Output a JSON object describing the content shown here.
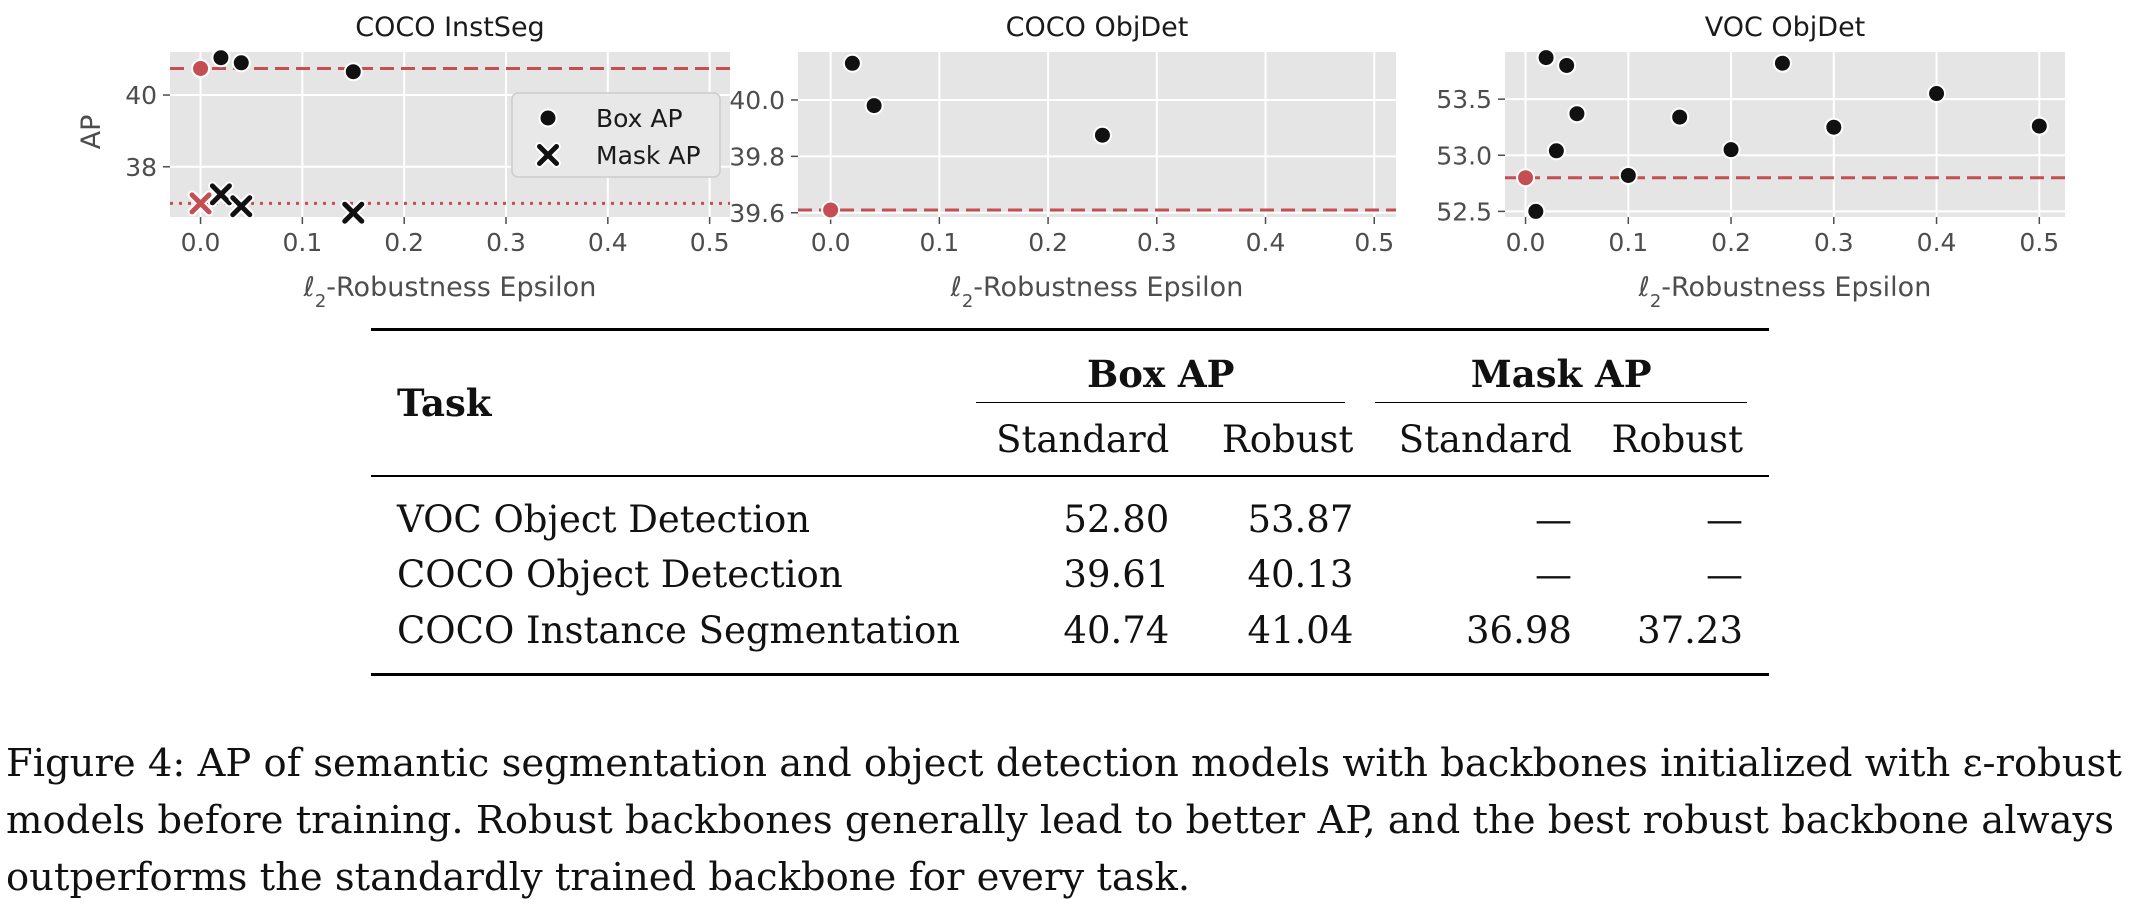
{
  "chart_data": [
    {
      "type": "scatter",
      "title": "COCO InstSeg",
      "xlabel": "ℓ2-Robustness Epsilon",
      "ylabel": "AP",
      "xlim": [
        -0.03,
        0.52
      ],
      "ylim": [
        36.6,
        41.2
      ],
      "xticks": [
        0.0,
        0.1,
        0.2,
        0.3,
        0.4,
        0.5
      ],
      "xtick_labels": [
        "0.0",
        "0.1",
        "0.2",
        "0.3",
        "0.4",
        "0.5"
      ],
      "yticks": [
        38,
        40
      ],
      "ytick_labels": [
        "38",
        "40"
      ],
      "grid": true,
      "legend": "center-right",
      "series": [
        {
          "name": "Box AP",
          "marker": "circle",
          "x": [
            0.02,
            0.04,
            0.15
          ],
          "y": [
            41.04,
            40.9,
            40.65
          ]
        },
        {
          "name": "Mask AP",
          "marker": "x",
          "x": [
            0.02,
            0.04,
            0.15
          ],
          "y": [
            37.23,
            36.9,
            36.72
          ]
        }
      ],
      "baselines": [
        {
          "label": "Box AP standard",
          "x": 0.0,
          "y": 40.74,
          "marker": "circle",
          "style": "dashed"
        },
        {
          "label": "Mask AP standard",
          "x": 0.0,
          "y": 36.98,
          "marker": "x",
          "style": "dotted"
        }
      ]
    },
    {
      "type": "scatter",
      "title": "COCO ObjDet",
      "xlabel": "ℓ2-Robustness Epsilon",
      "ylabel": "",
      "xlim": [
        -0.03,
        0.52
      ],
      "ylim": [
        39.585,
        40.17
      ],
      "xticks": [
        0.0,
        0.1,
        0.2,
        0.3,
        0.4,
        0.5
      ],
      "xtick_labels": [
        "0.0",
        "0.1",
        "0.2",
        "0.3",
        "0.4",
        "0.5"
      ],
      "yticks": [
        39.6,
        39.8,
        40.0
      ],
      "ytick_labels": [
        "39.6",
        "39.8",
        "40.0"
      ],
      "grid": true,
      "series": [
        {
          "name": "Box AP",
          "marker": "circle",
          "x": [
            0.02,
            0.04,
            0.25
          ],
          "y": [
            40.13,
            39.98,
            39.875
          ]
        }
      ],
      "baselines": [
        {
          "label": "standard",
          "x": 0.0,
          "y": 39.61,
          "marker": "circle",
          "style": "dashed"
        }
      ]
    },
    {
      "type": "scatter",
      "title": "VOC ObjDet",
      "xlabel": "ℓ2-Robustness Epsilon",
      "ylabel": "",
      "xlim": [
        -0.02,
        0.525
      ],
      "ylim": [
        52.45,
        53.92
      ],
      "xticks": [
        0.0,
        0.1,
        0.2,
        0.3,
        0.4,
        0.5
      ],
      "xtick_labels": [
        "0.0",
        "0.1",
        "0.2",
        "0.3",
        "0.4",
        "0.5"
      ],
      "yticks": [
        52.5,
        53.0,
        53.5
      ],
      "ytick_labels": [
        "52.5",
        "53.0",
        "53.5"
      ],
      "grid": true,
      "series": [
        {
          "name": "Box AP",
          "marker": "circle",
          "x": [
            0.01,
            0.02,
            0.03,
            0.04,
            0.05,
            0.1,
            0.15,
            0.2,
            0.25,
            0.3,
            0.4,
            0.5
          ],
          "y": [
            52.5,
            53.87,
            53.04,
            53.8,
            53.37,
            52.82,
            53.34,
            53.05,
            53.82,
            53.25,
            53.55,
            53.26
          ]
        }
      ],
      "baselines": [
        {
          "label": "standard",
          "x": 0.0,
          "y": 52.8,
          "marker": "circle",
          "style": "dashed"
        }
      ]
    }
  ],
  "colors": {
    "panel_bg": "#e5e5e5",
    "grid": "#ffffff",
    "point": "#111111",
    "baseline": "#c44e52",
    "tick_text": "#4d4d4d"
  },
  "table": {
    "task_header": "Task",
    "groups": [
      "Box AP",
      "Mask AP"
    ],
    "subheaders": [
      "Standard",
      "Robust",
      "Standard",
      "Robust"
    ],
    "rows": [
      {
        "task": "VOC Object Detection",
        "box_std": "52.80",
        "box_rob": "53.87",
        "mask_std": "—",
        "mask_rob": "—"
      },
      {
        "task": "COCO Object Detection",
        "box_std": "39.61",
        "box_rob": "40.13",
        "mask_std": "—",
        "mask_rob": "—"
      },
      {
        "task": "COCO Instance Segmentation",
        "box_std": "40.74",
        "box_rob": "41.04",
        "mask_std": "36.98",
        "mask_rob": "37.23"
      }
    ]
  },
  "caption": {
    "line1": "Figure 4: AP of semantic segmentation and object detection models with backbones initialized with ε-robust",
    "line2": "models before training. Robust backbones generally lead to better AP, and the best robust backbone always",
    "line3": "outperforms the standardly trained backbone for every task."
  }
}
